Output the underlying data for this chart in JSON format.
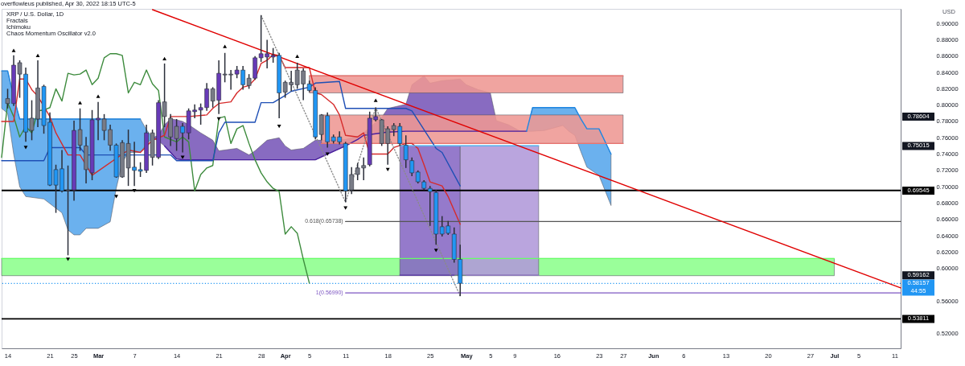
{
  "chart_data": {
    "type": "candlestick",
    "title": "XRP / U.S. Dollar, 1D",
    "subtitle": "overflowleus published, Apr 30, 2022 18:15 UTC-5",
    "ylabel": "USD",
    "x": [
      "2022-02-14",
      "2022-02-15",
      "2022-02-16",
      "2022-02-17",
      "2022-02-18",
      "2022-02-19",
      "2022-02-20",
      "2022-02-21",
      "2022-02-22",
      "2022-02-23",
      "2022-02-24",
      "2022-02-25",
      "2022-02-26",
      "2022-02-27",
      "2022-02-28",
      "2022-03-01",
      "2022-03-02",
      "2022-03-03",
      "2022-03-04",
      "2022-03-05",
      "2022-03-06",
      "2022-03-07",
      "2022-03-08",
      "2022-03-09",
      "2022-03-10",
      "2022-03-11",
      "2022-03-12",
      "2022-03-13",
      "2022-03-14",
      "2022-03-15",
      "2022-03-16",
      "2022-03-17",
      "2022-03-18",
      "2022-03-19",
      "2022-03-20",
      "2022-03-21",
      "2022-03-22",
      "2022-03-23",
      "2022-03-24",
      "2022-03-25",
      "2022-03-26",
      "2022-03-27",
      "2022-03-28",
      "2022-03-29",
      "2022-03-30",
      "2022-03-31",
      "2022-04-01",
      "2022-04-02",
      "2022-04-03",
      "2022-04-04",
      "2022-04-05",
      "2022-04-06",
      "2022-04-07",
      "2022-04-08",
      "2022-04-09",
      "2022-04-10",
      "2022-04-11",
      "2022-04-12",
      "2022-04-13",
      "2022-04-14",
      "2022-04-15",
      "2022-04-16",
      "2022-04-17",
      "2022-04-18",
      "2022-04-19",
      "2022-04-20",
      "2022-04-21",
      "2022-04-22",
      "2022-04-23",
      "2022-04-24",
      "2022-04-25",
      "2022-04-26",
      "2022-04-27",
      "2022-04-28",
      "2022-04-29",
      "2022-04-30"
    ],
    "ohlc": [
      [
        0.808,
        0.82,
        0.796,
        0.802
      ],
      [
        0.802,
        0.861,
        0.799,
        0.849
      ],
      [
        0.852,
        0.855,
        0.809,
        0.838
      ],
      [
        0.838,
        0.846,
        0.755,
        0.767
      ],
      [
        0.769,
        0.806,
        0.757,
        0.784
      ],
      [
        0.783,
        0.855,
        0.773,
        0.821
      ],
      [
        0.823,
        0.825,
        0.765,
        0.775
      ],
      [
        0.779,
        0.791,
        0.701,
        0.702
      ],
      [
        0.721,
        0.727,
        0.668,
        0.702
      ],
      [
        0.722,
        0.745,
        0.693,
        0.695
      ],
      [
        0.695,
        0.726,
        0.616,
        0.696
      ],
      [
        0.696,
        0.781,
        0.683,
        0.769
      ],
      [
        0.77,
        0.796,
        0.744,
        0.751
      ],
      [
        0.75,
        0.761,
        0.704,
        0.721
      ],
      [
        0.717,
        0.794,
        0.708,
        0.782
      ],
      [
        0.782,
        0.804,
        0.757,
        0.784
      ],
      [
        0.783,
        0.789,
        0.757,
        0.769
      ],
      [
        0.77,
        0.776,
        0.744,
        0.751
      ],
      [
        0.751,
        0.753,
        0.711,
        0.712
      ],
      [
        0.712,
        0.757,
        0.711,
        0.754
      ],
      [
        0.753,
        0.77,
        0.701,
        0.723
      ],
      [
        0.724,
        0.755,
        0.701,
        0.72
      ],
      [
        0.721,
        0.73,
        0.712,
        0.719
      ],
      [
        0.72,
        0.776,
        0.717,
        0.766
      ],
      [
        0.766,
        0.77,
        0.726,
        0.736
      ],
      [
        0.736,
        0.806,
        0.734,
        0.803
      ],
      [
        0.804,
        0.851,
        0.773,
        0.786
      ],
      [
        0.784,
        0.789,
        0.75,
        0.761
      ],
      [
        0.759,
        0.783,
        0.744,
        0.774
      ],
      [
        0.774,
        0.778,
        0.742,
        0.766
      ],
      [
        0.766,
        0.796,
        0.758,
        0.793
      ],
      [
        0.792,
        0.801,
        0.784,
        0.794
      ],
      [
        0.794,
        0.802,
        0.776,
        0.797
      ],
      [
        0.797,
        0.827,
        0.793,
        0.82
      ],
      [
        0.82,
        0.822,
        0.797,
        0.805
      ],
      [
        0.806,
        0.855,
        0.789,
        0.839
      ],
      [
        0.838,
        0.864,
        0.828,
        0.837
      ],
      [
        0.837,
        0.843,
        0.819,
        0.838
      ],
      [
        0.838,
        0.848,
        0.833,
        0.843
      ],
      [
        0.843,
        0.848,
        0.819,
        0.825
      ],
      [
        0.824,
        0.838,
        0.82,
        0.833
      ],
      [
        0.833,
        0.86,
        0.831,
        0.858
      ],
      [
        0.858,
        0.91,
        0.853,
        0.863
      ],
      [
        0.859,
        0.88,
        0.845,
        0.863
      ],
      [
        0.859,
        0.87,
        0.852,
        0.861
      ],
      [
        0.861,
        0.864,
        0.784,
        0.815
      ],
      [
        0.816,
        0.83,
        0.809,
        0.828
      ],
      [
        0.828,
        0.842,
        0.817,
        0.825
      ],
      [
        0.825,
        0.852,
        0.82,
        0.843
      ],
      [
        0.842,
        0.845,
        0.806,
        0.826
      ],
      [
        0.826,
        0.83,
        0.816,
        0.818
      ],
      [
        0.818,
        0.822,
        0.758,
        0.761
      ],
      [
        0.764,
        0.789,
        0.757,
        0.788
      ],
      [
        0.787,
        0.791,
        0.748,
        0.755
      ],
      [
        0.761,
        0.764,
        0.753,
        0.756
      ],
      [
        0.761,
        0.768,
        0.752,
        0.755
      ],
      [
        0.753,
        0.755,
        0.681,
        0.695
      ],
      [
        0.696,
        0.724,
        0.691,
        0.715
      ],
      [
        0.715,
        0.729,
        0.708,
        0.723
      ],
      [
        0.723,
        0.736,
        0.708,
        0.726
      ],
      [
        0.727,
        0.792,
        0.725,
        0.784
      ],
      [
        0.782,
        0.797,
        0.78,
        0.786
      ],
      [
        0.782,
        0.783,
        0.75,
        0.753
      ],
      [
        0.753,
        0.774,
        0.727,
        0.771
      ],
      [
        0.77,
        0.778,
        0.762,
        0.775
      ],
      [
        0.774,
        0.778,
        0.75,
        0.753
      ],
      [
        0.751,
        0.763,
        0.723,
        0.733
      ],
      [
        0.732,
        0.736,
        0.713,
        0.717
      ],
      [
        0.718,
        0.72,
        0.704,
        0.706
      ],
      [
        0.706,
        0.708,
        0.696,
        0.698
      ],
      [
        0.698,
        0.701,
        0.652,
        0.694
      ],
      [
        0.693,
        0.696,
        0.629,
        0.642
      ],
      [
        0.651,
        0.664,
        0.639,
        0.642
      ],
      [
        0.652,
        0.658,
        0.641,
        0.643
      ],
      [
        0.642,
        0.65,
        0.607,
        0.611
      ],
      [
        0.611,
        0.629,
        0.566,
        0.58157
      ]
    ],
    "colors": [
      "#787b86",
      "#673ab7",
      "#787b86",
      "#2196f3",
      "#787b86",
      "#787b86",
      "#2196f3",
      "#2196f3",
      "#2196f3",
      "#2196f3",
      "#787b86",
      "#673ab7",
      "#787b86",
      "#787b86",
      "#673ab7",
      "#673ab7",
      "#787b86",
      "#787b86",
      "#2196f3",
      "#787b86",
      "#787b86",
      "#2196f3",
      "#2196f3",
      "#673ab7",
      "#787b86",
      "#673ab7",
      "#787b86",
      "#787b86",
      "#787b86",
      "#2196f3",
      "#673ab7",
      "#673ab7",
      "#673ab7",
      "#673ab7",
      "#787b86",
      "#673ab7",
      "#787b86",
      "#787b86",
      "#673ab7",
      "#2196f3",
      "#787b86",
      "#673ab7",
      "#673ab7",
      "#673ab7",
      "#673ab7",
      "#2196f3",
      "#787b86",
      "#787b86",
      "#787b86",
      "#787b86",
      "#2196f3",
      "#2196f3",
      "#787b86",
      "#2196f3",
      "#2196f3",
      "#2196f3",
      "#2196f3",
      "#787b86",
      "#787b86",
      "#787b86",
      "#673ab7",
      "#673ab7",
      "#787b86",
      "#787b86",
      "#787b86",
      "#2196f3",
      "#2196f3",
      "#2196f3",
      "#2196f3",
      "#2196f3",
      "#2196f3",
      "#2196f3",
      "#2196f3",
      "#2196f3",
      "#2196f3",
      "#2196f3"
    ],
    "series": [
      {
        "type": "line",
        "color": "#1e88e5",
        "x": [
          "2022-02-13",
          "2022-02-14",
          "2022-02-15",
          "2022-02-16",
          "2022-02-17",
          "2022-02-20",
          "2022-02-23",
          "2022-02-24",
          "2022-02-25",
          "2022-02-26",
          "2022-02-27",
          "2022-03-01",
          "2022-03-03",
          "2022-03-04",
          "2022-03-05",
          "2022-03-06",
          "2022-03-08",
          "2022-03-09",
          "2022-03-10"
        ],
        "values": [
          0.842,
          0.842,
          0.81,
          0.783,
          0.783,
          0.783,
          0.783,
          0.783,
          0.783,
          0.783,
          0.783,
          0.783,
          0.783,
          0.783,
          0.783,
          0.783,
          0.783,
          null,
          null
        ],
        "upper": [
          0.842,
          0.842,
          0.81,
          0.783,
          0.783,
          0.783,
          0.783,
          0.783,
          0.783,
          0.783,
          0.783,
          0.783,
          0.783,
          0.783,
          0.783,
          0.783,
          0.783,
          0.77,
          0.76
        ],
        "lower": [
          0.796,
          0.79,
          0.74,
          0.7,
          0.688,
          0.685,
          0.668,
          0.647,
          0.641,
          0.641,
          0.649,
          0.649,
          0.657,
          0.698,
          0.73,
          0.742,
          0.742,
          0.752,
          0.76
        ]
      },
      {
        "type": "line",
        "color": "#4a1fa0",
        "x": [
          "2022-03-10",
          "2022-03-11",
          "2022-03-12",
          "2022-03-13",
          "2022-03-14",
          "2022-03-15",
          "2022-03-16",
          "2022-03-18",
          "2022-03-20",
          "2022-03-21",
          "2022-03-24",
          "2022-03-26",
          "2022-03-27",
          "2022-03-29",
          "2022-03-31",
          "2022-04-01",
          "2022-04-02",
          "2022-04-04",
          "2022-04-06",
          "2022-04-08",
          "2022-04-11",
          "2022-04-13",
          "2022-04-14",
          "2022-04-16",
          "2022-04-17",
          "2022-04-18",
          "2022-04-21",
          "2022-04-22",
          "2022-04-24",
          "2022-04-25",
          "2022-04-27",
          "2022-04-30",
          "2022-05-01",
          "2022-05-03",
          "2022-05-05",
          "2022-05-06",
          "2022-05-08",
          "2022-05-10",
          "2022-05-11"
        ],
        "values": [
          null,
          null,
          0.75,
          0.742,
          0.734,
          0.733,
          0.733,
          0.733,
          0.733,
          0.733,
          0.733,
          0.733,
          0.733,
          0.733,
          0.733,
          0.733,
          0.733,
          0.733,
          0.733,
          0.74,
          0.75,
          0.758,
          0.763,
          0.765,
          0.766,
          0.767,
          0.768,
          0.768,
          0.768,
          0.768,
          0.768,
          0.768,
          0.768,
          0.768,
          0.768,
          0.768,
          0.768,
          0.768,
          0.768
        ],
        "upper": [
          0.76,
          0.763,
          0.776,
          0.783,
          0.782,
          0.78,
          0.776,
          0.766,
          0.757,
          0.744,
          0.747,
          0.739,
          0.744,
          0.757,
          0.76,
          0.75,
          0.745,
          0.747,
          0.757,
          0.757,
          0.758,
          0.762,
          0.766,
          0.779,
          0.785,
          0.796,
          0.801,
          0.825,
          0.836,
          0.827,
          0.83,
          0.832,
          0.825,
          0.819,
          0.815,
          0.781,
          0.776,
          0.768,
          0.768
        ],
        "lower": [
          0.76,
          0.756,
          0.75,
          0.742,
          0.734,
          0.733,
          0.733,
          0.733,
          0.733,
          0.733,
          0.733,
          0.733,
          0.733,
          0.733,
          0.733,
          0.733,
          0.733,
          0.733,
          0.733,
          0.74,
          0.75,
          0.758,
          0.763,
          0.765,
          0.766,
          0.767,
          0.768,
          0.768,
          0.768,
          0.768,
          0.768,
          0.768,
          0.768,
          0.768,
          0.768,
          0.768,
          0.768,
          0.768,
          0.768
        ]
      },
      {
        "type": "line",
        "color": "#1e88e5",
        "x": [
          "2022-05-11",
          "2022-05-12",
          "2022-05-14",
          "2022-05-17",
          "2022-05-18",
          "2022-05-19",
          "2022-05-20",
          "2022-05-21",
          "2022-05-23",
          "2022-05-25"
        ],
        "values": [
          0.768,
          0.797,
          0.797,
          0.797,
          0.797,
          0.797,
          0.783,
          0.771,
          0.771,
          0.74
        ],
        "upper": [
          0.768,
          0.797,
          0.797,
          0.797,
          0.797,
          0.797,
          0.783,
          0.771,
          0.771,
          0.74
        ],
        "lower": [
          0.768,
          0.768,
          0.769,
          0.775,
          0.768,
          0.763,
          0.743,
          0.724,
          0.714,
          0.677
        ]
      },
      {
        "type": "line",
        "color": "#e8746f",
        "x": [
          "2022-04-05",
          "2022-05-27"
        ],
        "values": [
          0.836,
          0.836
        ],
        "upper": [
          0.836,
          0.836
        ],
        "lower": [
          0.815,
          0.815
        ]
      },
      {
        "type": "line",
        "color": "#e8746f",
        "x": [
          "2022-04-07",
          "2022-05-27"
        ],
        "values": [
          0.753,
          0.753
        ],
        "upper": [
          0.788,
          0.788
        ],
        "lower": [
          0.753,
          0.753
        ]
      },
      {
        "type": "line",
        "color": "#66ff66",
        "x": [
          "2022-02-13",
          "2022-07-01"
        ],
        "values": [
          0.612,
          0.612
        ],
        "upper": [
          0.612,
          0.612
        ],
        "lower": [
          0.591,
          0.591
        ]
      },
      {
        "type": "line",
        "color": "#5e35b1",
        "x": [
          "2022-04-20",
          "2022-04-29",
          "2022-04-30"
        ],
        "values": [
          0.59162,
          0.59162,
          null
        ],
        "upper": [
          0.75015,
          0.75015,
          0.75015
        ],
        "lower": [
          0.59162,
          0.59162,
          0.59162
        ]
      },
      {
        "type": "line",
        "color": "#9575cd",
        "x": [
          "2022-04-30",
          "2022-05-01",
          "2022-05-13"
        ],
        "values": [
          null,
          0.59162,
          0.59162
        ],
        "upper": [
          0.75015,
          0.75015,
          0.75015
        ],
        "lower": [
          0.59162,
          0.59162,
          0.59162
        ]
      },
      {
        "type": "line",
        "color": "#3d8b3d",
        "x": [
          "2022-02-13",
          "2022-02-14",
          "2022-02-15",
          "2022-02-16",
          "2022-02-17",
          "2022-02-18",
          "2022-02-19",
          "2022-02-20",
          "2022-02-21",
          "2022-02-22",
          "2022-02-23",
          "2022-02-24",
          "2022-02-25",
          "2022-02-26",
          "2022-02-27",
          "2022-02-28",
          "2022-03-01",
          "2022-03-02",
          "2022-03-03",
          "2022-03-04",
          "2022-03-05",
          "2022-03-06",
          "2022-03-07",
          "2022-03-08",
          "2022-03-09",
          "2022-03-10",
          "2022-03-11",
          "2022-03-12",
          "2022-03-13",
          "2022-03-14",
          "2022-03-15",
          "2022-03-16",
          "2022-03-17",
          "2022-03-18",
          "2022-03-19",
          "2022-03-20",
          "2022-03-21",
          "2022-03-22",
          "2022-03-23",
          "2022-03-24",
          "2022-03-25",
          "2022-03-26",
          "2022-03-27",
          "2022-03-28",
          "2022-03-29",
          "2022-03-30",
          "2022-03-31",
          "2022-04-01",
          "2022-04-02",
          "2022-04-03",
          "2022-04-04",
          "2022-04-05"
        ],
        "values": [
          0.736,
          0.803,
          0.786,
          0.761,
          0.774,
          0.766,
          0.793,
          0.794,
          0.797,
          0.82,
          0.805,
          0.839,
          0.837,
          0.838,
          0.843,
          0.825,
          0.833,
          0.858,
          0.863,
          0.863,
          0.861,
          0.815,
          0.828,
          0.825,
          0.843,
          0.826,
          0.818,
          0.761,
          null,
          0.755,
          0.761,
          0.755,
          0.695,
          0.715,
          0.723,
          0.726,
          0.784,
          0.786,
          0.753,
          0.771,
          0.775,
          0.753,
          0.733,
          0.717,
          0.706,
          0.698,
          0.694,
          0.642,
          0.651,
          0.643,
          0.611,
          0.582
        ]
      },
      {
        "type": "line",
        "color": "#1e4fb5",
        "x": [
          "2022-02-13",
          "2022-02-20",
          "2022-02-21",
          "2022-02-26",
          "2022-02-27",
          "2022-03-13",
          "2022-03-14",
          "2022-03-20",
          "2022-03-21",
          "2022-03-22",
          "2022-03-27",
          "2022-03-28",
          "2022-03-30",
          "2022-04-01",
          "2022-04-02",
          "2022-04-05",
          "2022-04-06",
          "2022-04-10",
          "2022-04-11",
          "2022-04-21",
          "2022-04-22",
          "2022-04-26",
          "2022-04-27",
          "2022-04-30"
        ],
        "values": [
          0.732,
          0.732,
          0.748,
          0.748,
          0.739,
          0.739,
          0.732,
          0.732,
          0.766,
          0.779,
          0.779,
          0.803,
          0.803,
          0.812,
          0.817,
          0.822,
          0.827,
          0.829,
          0.796,
          0.796,
          0.793,
          0.747,
          0.742,
          0.701
        ]
      },
      {
        "type": "line",
        "color": "#d62b2b",
        "x": [
          "2022-02-13",
          "2022-02-15",
          "2022-02-16",
          "2022-02-17",
          "2022-02-18",
          "2022-02-19",
          "2022-02-20",
          "2022-02-21",
          "2022-02-22",
          "2022-02-24",
          "2022-02-26",
          "2022-02-28",
          "2022-03-04",
          "2022-03-06",
          "2022-03-08",
          "2022-03-10",
          "2022-03-12",
          "2022-03-13",
          "2022-03-16",
          "2022-03-19",
          "2022-03-20",
          "2022-03-21",
          "2022-03-23",
          "2022-03-24",
          "2022-03-25",
          "2022-03-26",
          "2022-03-27",
          "2022-03-28",
          "2022-03-29",
          "2022-03-30",
          "2022-03-31",
          "2022-04-01",
          "2022-04-05",
          "2022-04-06",
          "2022-04-07",
          "2022-04-09",
          "2022-04-10",
          "2022-04-11",
          "2022-04-13",
          "2022-04-14",
          "2022-04-15",
          "2022-04-18",
          "2022-04-19",
          "2022-04-21",
          "2022-04-22",
          "2022-04-23",
          "2022-04-24",
          "2022-04-25",
          "2022-04-27",
          "2022-04-28",
          "2022-04-30"
        ],
        "values": [
          0.78,
          0.78,
          0.832,
          0.832,
          0.819,
          0.811,
          null,
          0.786,
          0.766,
          0.739,
          0.739,
          0.714,
          null,
          0.745,
          0.742,
          0.757,
          0.763,
          0.786,
          0.786,
          0.788,
          0.796,
          0.802,
          0.804,
          0.815,
          0.822,
          0.824,
          0.832,
          0.851,
          0.855,
          0.862,
          0.861,
          0.846,
          0.846,
          0.815,
          0.813,
          0.801,
          0.788,
          0.763,
          0.761,
          0.766,
          0.74,
          0.74,
          0.748,
          0.753,
          0.753,
          0.747,
          0.727,
          0.706,
          0.701,
          0.688,
          0.654
        ]
      },
      {
        "type": "line",
        "color": "#56b4f0",
        "x": [
          "2022-04-20",
          "2022-05-13"
        ],
        "values": [
          0.75015,
          0.75015
        ]
      },
      {
        "type": "line",
        "color": "#8a8a8a",
        "line_style": "dotted",
        "x": [
          "2022-03-28",
          "2022-04-11",
          "2022-04-16",
          "2022-04-30"
        ],
        "values": [
          0.91,
          0.681,
          0.797,
          0.566
        ]
      },
      {
        "type": "line",
        "color": "#555555",
        "name": "0.618(0.65738)",
        "x": [
          "2022-04-11",
          "2022-07-12"
        ],
        "values": [
          0.65738,
          0.65738
        ]
      },
      {
        "type": "line",
        "color": "#7e57c2",
        "name": "1(0.56990)",
        "x": [
          "2022-04-11",
          "2022-07-12"
        ],
        "values": [
          0.5699,
          0.5699
        ]
      },
      {
        "type": "line",
        "color": "#e00000",
        "x": [
          "2022-03-10",
          "2022-07-12"
        ],
        "values": [
          0.917,
          0.576
        ]
      },
      {
        "type": "scatter",
        "color": "#000000",
        "marker": "triangle",
        "x": [
          "2022-02-15",
          "2022-02-19",
          "2022-02-26",
          "2022-03-01",
          "2022-03-12",
          "2022-03-22",
          "2022-04-03",
          "2022-04-16"
        ],
        "values": [
          0.867,
          0.861,
          0.803,
          0.811,
          0.857,
          0.872,
          0.86,
          0.806
        ]
      },
      {
        "type": "scatter",
        "color": "#000000",
        "marker": "triangle-down",
        "x": [
          "2022-02-17",
          "2022-02-24",
          "2022-03-04",
          "2022-03-07",
          "2022-03-15",
          "2022-03-21",
          "2022-03-31",
          "2022-04-08",
          "2022-04-11",
          "2022-04-18",
          "2022-04-26"
        ],
        "values": [
          0.748,
          0.611,
          0.688,
          0.695,
          0.736,
          0.783,
          0.774,
          0.74,
          0.674,
          0.721,
          0.622
        ]
      }
    ],
    "ref_lines": [
      {
        "axis": "y",
        "value": 0.69545,
        "label": "0.69545",
        "color": "#000000",
        "line_style": "solid"
      },
      {
        "axis": "y",
        "value": 0.58157,
        "label": "0.58157\n44:55",
        "color": "#2196f3",
        "line_style": "dotted"
      },
      {
        "axis": "y",
        "value": 0.53811,
        "label": "0.53811",
        "color": "#000000",
        "line_style": "solid"
      }
    ],
    "annotations": [
      "Fractals",
      "Ichimoku",
      "Chaos Momentum Oscillator v2.0"
    ],
    "xlim": [
      "2022-02-13",
      "2022-07-12"
    ],
    "xticks": [
      {
        "value": "2022-02-14",
        "label": "14"
      },
      {
        "value": "2022-02-21",
        "label": "21"
      },
      {
        "value": "2022-02-25",
        "label": "25"
      },
      {
        "value": "2022-03-01",
        "label": "Mar"
      },
      {
        "value": "2022-03-07",
        "label": "7"
      },
      {
        "value": "2022-03-14",
        "label": "14"
      },
      {
        "value": "2022-03-21",
        "label": "21"
      },
      {
        "value": "2022-03-28",
        "label": "28"
      },
      {
        "value": "2022-04-01",
        "label": "Apr"
      },
      {
        "value": "2022-04-05",
        "label": "5"
      },
      {
        "value": "2022-04-11",
        "label": "11"
      },
      {
        "value": "2022-04-18",
        "label": "18"
      },
      {
        "value": "2022-04-25",
        "label": "25"
      },
      {
        "value": "2022-05-01",
        "label": "May"
      },
      {
        "value": "2022-05-05",
        "label": "5"
      },
      {
        "value": "2022-05-09",
        "label": "9"
      },
      {
        "value": "2022-05-16",
        "label": "16"
      },
      {
        "value": "2022-05-23",
        "label": "23"
      },
      {
        "value": "2022-05-27",
        "label": "27"
      },
      {
        "value": "2022-06-01",
        "label": "Jun"
      },
      {
        "value": "2022-06-06",
        "label": "6"
      },
      {
        "value": "2022-06-13",
        "label": "13"
      },
      {
        "value": "2022-06-20",
        "label": "20"
      },
      {
        "value": "2022-06-27",
        "label": "27"
      },
      {
        "value": "2022-07-01",
        "label": "Jul"
      },
      {
        "value": "2022-07-05",
        "label": "5"
      },
      {
        "value": "2022-07-11",
        "label": "11"
      }
    ],
    "ylim": [
      0.502,
      0.918
    ],
    "yticks": [
      {
        "value": 0.52,
        "label": "0.52000"
      },
      {
        "value": 0.56,
        "label": "0.56000"
      },
      {
        "value": 0.6,
        "label": "0.60000"
      },
      {
        "value": 0.62,
        "label": "0.62000"
      },
      {
        "value": 0.64,
        "label": "0.64000"
      },
      {
        "value": 0.66,
        "label": "0.66000"
      },
      {
        "value": 0.68,
        "label": "0.68000"
      },
      {
        "value": 0.7,
        "label": "0.70000"
      },
      {
        "value": 0.72,
        "label": "0.72000"
      },
      {
        "value": 0.74,
        "label": "0.74000"
      },
      {
        "value": 0.76,
        "label": "0.76000"
      },
      {
        "value": 0.78,
        "label": "0.78000"
      },
      {
        "value": 0.8,
        "label": "0.80000"
      },
      {
        "value": 0.82,
        "label": "0.82000"
      },
      {
        "value": 0.84,
        "label": "0.84000"
      },
      {
        "value": 0.86,
        "label": "0.86000"
      },
      {
        "value": 0.88,
        "label": "0.88000"
      },
      {
        "value": 0.9,
        "label": "0.90000"
      }
    ],
    "y2lim": [
      0.502,
      0.918
    ],
    "y2ticks": [
      0.78604,
      0.75015,
      0.59162
    ]
  }
}
